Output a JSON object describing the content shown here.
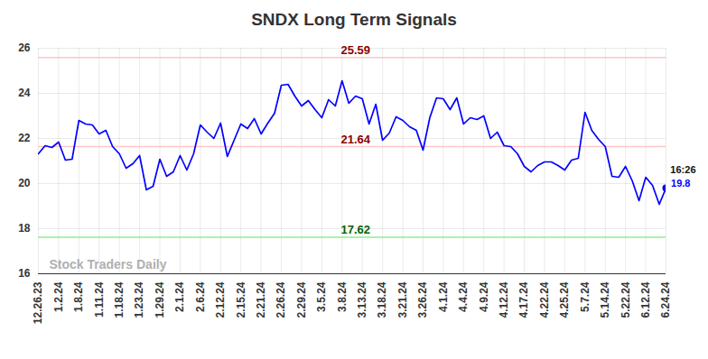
{
  "chart_data": {
    "type": "line",
    "title": "SNDX Long Term Signals",
    "categories": [
      "12.26.23",
      null,
      null,
      "1.2.24",
      null,
      null,
      "1.8.24",
      null,
      null,
      "1.11.24",
      null,
      null,
      "1.18.24",
      null,
      null,
      "1.23.24",
      null,
      null,
      "1.29.24",
      null,
      null,
      "2.1.24",
      null,
      null,
      "2.6.24",
      null,
      null,
      "2.12.24",
      null,
      null,
      "2.15.24",
      null,
      null,
      "2.21.24",
      null,
      null,
      "2.26.24",
      null,
      null,
      "2.29.24",
      null,
      null,
      "3.5.24",
      null,
      null,
      "3.8.24",
      null,
      null,
      "3.13.24",
      null,
      null,
      "3.18.24",
      null,
      null,
      "3.21.24",
      null,
      null,
      "3.26.24",
      null,
      null,
      "4.1.24",
      null,
      null,
      "4.4.24",
      null,
      null,
      "4.9.24",
      null,
      null,
      "4.12.24",
      null,
      null,
      "4.17.24",
      null,
      null,
      "4.22.24",
      null,
      null,
      "4.25.24",
      null,
      null,
      "5.7.24",
      null,
      null,
      "5.14.24",
      null,
      null,
      "5.22.24",
      null,
      null,
      "6.12.24",
      null,
      null,
      "6.24.24"
    ],
    "values": [
      21.32,
      21.68,
      21.6,
      21.84,
      21.04,
      21.08,
      22.8,
      22.64,
      22.6,
      22.2,
      22.36,
      21.64,
      21.32,
      20.68,
      20.88,
      21.24,
      19.72,
      19.88,
      21.08,
      20.32,
      20.52,
      21.24,
      20.6,
      21.32,
      22.6,
      22.28,
      22.0,
      22.68,
      21.2,
      21.92,
      22.64,
      22.44,
      22.88,
      22.2,
      22.68,
      23.12,
      24.36,
      24.4,
      23.88,
      23.44,
      23.68,
      23.28,
      22.92,
      23.72,
      23.44,
      24.56,
      23.56,
      23.88,
      23.76,
      22.64,
      23.52,
      21.92,
      22.24,
      22.96,
      22.8,
      22.52,
      22.36,
      21.48,
      22.92,
      23.8,
      23.76,
      23.28,
      23.8,
      22.64,
      22.92,
      22.84,
      23.0,
      22.0,
      22.28,
      21.68,
      21.64,
      21.32,
      20.76,
      20.52,
      20.8,
      20.96,
      20.96,
      20.8,
      20.6,
      21.04,
      21.12,
      23.16,
      22.36,
      21.96,
      21.64,
      20.32,
      20.28,
      20.76,
      20.12,
      19.24,
      20.28,
      19.92,
      19.08,
      19.8
    ],
    "color": "#0000ff",
    "ylim": [
      16,
      26
    ],
    "yticks": [
      16,
      18,
      20,
      22,
      24,
      26
    ],
    "grid": true,
    "levels": [
      {
        "value": 25.59,
        "color": "#ffc6c6",
        "text_color": "#8b0000"
      },
      {
        "value": 21.64,
        "color": "#ffc6c6",
        "text_color": "#8b0000"
      },
      {
        "value": 17.62,
        "color": "#90ee90",
        "text_color": "#006400"
      }
    ],
    "last_time": "16:26",
    "watermark": "Stock Traders Daily"
  }
}
